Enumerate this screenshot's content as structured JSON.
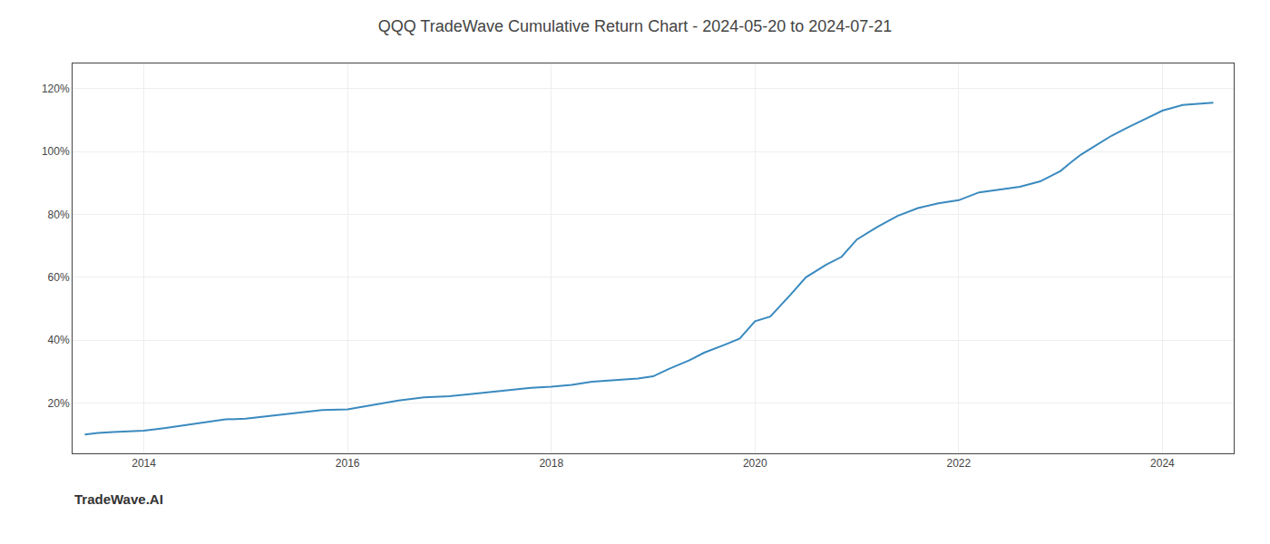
{
  "chart_data": {
    "type": "line",
    "title": "QQQ TradeWave Cumulative Return Chart - 2024-05-20 to 2024-07-21",
    "annotations": [
      "TradeWave.AI"
    ],
    "color": "#3a8abf",
    "x": [
      2013.42,
      2013.55,
      2013.7,
      2013.85,
      2014.0,
      2014.2,
      2014.5,
      2014.8,
      2015.0,
      2015.2,
      2015.5,
      2015.75,
      2016.0,
      2016.2,
      2016.5,
      2016.75,
      2017.0,
      2017.2,
      2017.4,
      2017.6,
      2017.8,
      2018.0,
      2018.2,
      2018.4,
      2018.6,
      2018.85,
      2019.0,
      2019.15,
      2019.35,
      2019.5,
      2019.7,
      2019.85,
      2020.0,
      2020.15,
      2020.35,
      2020.5,
      2020.7,
      2020.85,
      2021.0,
      2021.2,
      2021.4,
      2021.6,
      2021.8,
      2022.0,
      2022.2,
      2022.4,
      2022.6,
      2022.8,
      2023.0,
      2023.1,
      2023.2,
      2023.35,
      2023.5,
      2023.65,
      2023.8,
      2024.0,
      2024.2,
      2024.35,
      2024.5
    ],
    "values": [
      0.1,
      0.105,
      0.108,
      0.11,
      0.112,
      0.12,
      0.135,
      0.148,
      0.15,
      0.158,
      0.17,
      0.178,
      0.18,
      0.192,
      0.208,
      0.218,
      0.222,
      0.228,
      0.235,
      0.24,
      0.248,
      0.252,
      0.258,
      0.268,
      0.272,
      0.278,
      0.285,
      0.308,
      0.335,
      0.36,
      0.385,
      0.405,
      0.46,
      0.475,
      0.545,
      0.6,
      0.64,
      0.665,
      0.72,
      0.76,
      0.795,
      0.82,
      0.835,
      0.845,
      0.87,
      0.88,
      0.888,
      0.905,
      0.938,
      0.965,
      0.99,
      1.02,
      1.05,
      1.075,
      1.098,
      1.13,
      1.148,
      1.152,
      1.155
    ],
    "xlim": [
      2013.3,
      2024.7
    ],
    "ylim": [
      0.04,
      1.28
    ],
    "xticks": [
      2014,
      2016,
      2018,
      2020,
      2022,
      2024
    ],
    "yticks": [
      {
        "value": 0.2,
        "label": "20%"
      },
      {
        "value": 0.4,
        "label": "40%"
      },
      {
        "value": 0.6,
        "label": "60%"
      },
      {
        "value": 0.8,
        "label": "80%"
      },
      {
        "value": 1.0,
        "label": "100%"
      },
      {
        "value": 1.2,
        "label": "120%"
      }
    ],
    "grid": true
  }
}
